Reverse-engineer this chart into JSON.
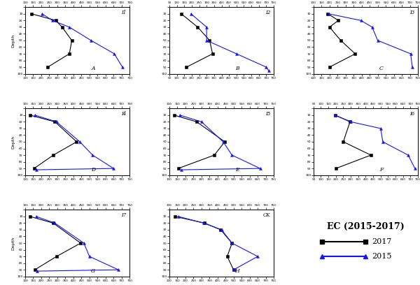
{
  "panels": [
    {
      "label": "I1",
      "sublabel": "A",
      "black_x": [
        140,
        290,
        330,
        390,
        375,
        240
      ],
      "black_y": [
        10,
        20,
        30,
        50,
        70,
        90
      ],
      "blue_x": [
        205,
        270,
        375,
        510,
        655,
        705
      ],
      "blue_y": [
        10,
        20,
        30,
        50,
        70,
        90
      ],
      "xlim": [
        100,
        750
      ],
      "xticks": [
        100,
        150,
        200,
        250,
        300,
        350,
        400,
        450,
        500,
        550,
        600,
        650,
        700,
        750
      ]
    },
    {
      "label": "I2",
      "sublabel": "B",
      "black_x": [
        130,
        240,
        320,
        340,
        165
      ],
      "black_y": [
        10,
        30,
        50,
        70,
        90
      ],
      "blue_x": [
        195,
        300,
        300,
        500,
        700,
        715
      ],
      "blue_y": [
        10,
        30,
        50,
        70,
        90,
        95
      ],
      "xlim": [
        50,
        750
      ],
      "xticks": [
        50,
        100,
        150,
        200,
        250,
        300,
        350,
        400,
        450,
        500,
        550,
        600,
        650,
        700,
        750
      ]
    },
    {
      "label": "I3",
      "sublabel": "C",
      "black_x": [
        190,
        255,
        200,
        270,
        360,
        200
      ],
      "black_y": [
        10,
        20,
        30,
        50,
        70,
        90
      ],
      "blue_x": [
        195,
        395,
        465,
        500,
        705,
        715
      ],
      "blue_y": [
        10,
        20,
        30,
        50,
        70,
        90
      ],
      "xlim": [
        100,
        750
      ],
      "xticks": [
        100,
        150,
        200,
        250,
        300,
        350,
        400,
        450,
        500,
        550,
        600,
        650,
        700,
        750
      ]
    },
    {
      "label": "I4",
      "sublabel": "D",
      "black_x": [
        130,
        285,
        420,
        275,
        155
      ],
      "black_y": [
        10,
        20,
        50,
        70,
        90
      ],
      "blue_x": [
        160,
        295,
        440,
        520,
        650,
        170
      ],
      "blue_y": [
        10,
        20,
        50,
        70,
        90,
        92
      ],
      "xlim": [
        100,
        750
      ],
      "xticks": [
        100,
        150,
        200,
        250,
        300,
        350,
        400,
        450,
        500,
        550,
        600,
        650,
        700,
        750
      ]
    },
    {
      "label": "I5",
      "sublabel": "E",
      "black_x": [
        130,
        270,
        445,
        380,
        155
      ],
      "black_y": [
        10,
        20,
        50,
        70,
        90
      ],
      "blue_x": [
        165,
        300,
        435,
        490,
        665,
        175
      ],
      "blue_y": [
        10,
        20,
        50,
        70,
        90,
        92
      ],
      "xlim": [
        100,
        750
      ],
      "xticks": [
        100,
        150,
        200,
        250,
        300,
        350,
        400,
        450,
        500,
        550,
        600,
        650,
        700,
        750
      ]
    },
    {
      "label": "I6",
      "sublabel": "F",
      "black_x": [
        195,
        295,
        250,
        435,
        200
      ],
      "black_y": [
        10,
        20,
        50,
        70,
        90
      ],
      "blue_x": [
        195,
        300,
        500,
        515,
        685,
        730
      ],
      "blue_y": [
        10,
        20,
        30,
        50,
        70,
        90
      ],
      "xlim": [
        50,
        750
      ],
      "xticks": [
        50,
        100,
        150,
        200,
        250,
        300,
        350,
        400,
        450,
        500,
        550,
        600,
        650,
        700,
        750
      ]
    },
    {
      "label": "I7",
      "sublabel": "G",
      "black_x": [
        130,
        275,
        445,
        295,
        160
      ],
      "black_y": [
        10,
        20,
        50,
        70,
        90
      ],
      "blue_x": [
        168,
        285,
        465,
        500,
        680,
        175
      ],
      "blue_y": [
        10,
        20,
        50,
        70,
        90,
        92
      ],
      "xlim": [
        100,
        750
      ],
      "xticks": [
        100,
        150,
        200,
        250,
        300,
        350,
        400,
        450,
        500,
        550,
        600,
        650,
        700,
        750
      ]
    },
    {
      "label": "CK",
      "sublabel": "H",
      "black_x": [
        135,
        320,
        420,
        490,
        460,
        500
      ],
      "black_y": [
        10,
        20,
        30,
        50,
        70,
        90
      ],
      "blue_x": [
        155,
        315,
        425,
        490,
        650,
        500
      ],
      "blue_y": [
        10,
        20,
        30,
        50,
        70,
        90
      ],
      "xlim": [
        100,
        750
      ],
      "xticks": [
        100,
        150,
        200,
        250,
        300,
        350,
        400,
        450,
        500,
        550,
        600,
        650,
        700,
        750
      ]
    }
  ],
  "depth_ticks": [
    0,
    10,
    20,
    30,
    40,
    50,
    60,
    70,
    80,
    90,
    100
  ],
  "depth_label": "Depth",
  "black_color": "#000000",
  "blue_color": "#1414FF",
  "legend_title": "EC (2015-2017)",
  "legend_2017": "2017",
  "legend_2015": "2015"
}
